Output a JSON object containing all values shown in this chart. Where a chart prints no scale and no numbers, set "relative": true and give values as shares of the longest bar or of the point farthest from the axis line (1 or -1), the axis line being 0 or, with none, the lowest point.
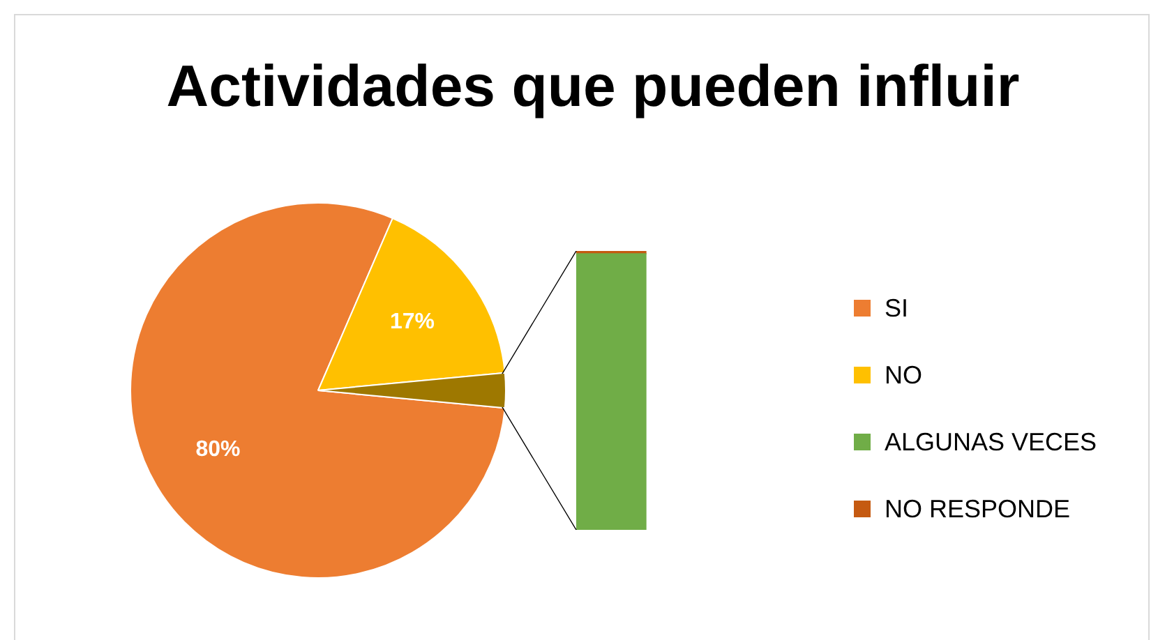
{
  "chart_data": [
    {
      "type": "pie",
      "title": "Actividades que pueden influir",
      "categories": [
        "SI",
        "NO",
        null
      ],
      "values": [
        80,
        17,
        3
      ],
      "colors": [
        "#ed7d31",
        "#ffc000",
        "#9e7800"
      ],
      "value_labels": [
        "80%",
        "17%",
        null
      ],
      "legend": "right"
    },
    {
      "type": "bar",
      "stacked": true,
      "relative": true,
      "categories": [
        null
      ],
      "series": [
        {
          "name": "ALGUNAS VECES",
          "color": "#70ad47",
          "values": [
            0.99
          ]
        },
        {
          "name": "NO RESPONDE",
          "color": "#c55a11",
          "values": [
            0.01
          ]
        }
      ],
      "legend": "right"
    }
  ]
}
